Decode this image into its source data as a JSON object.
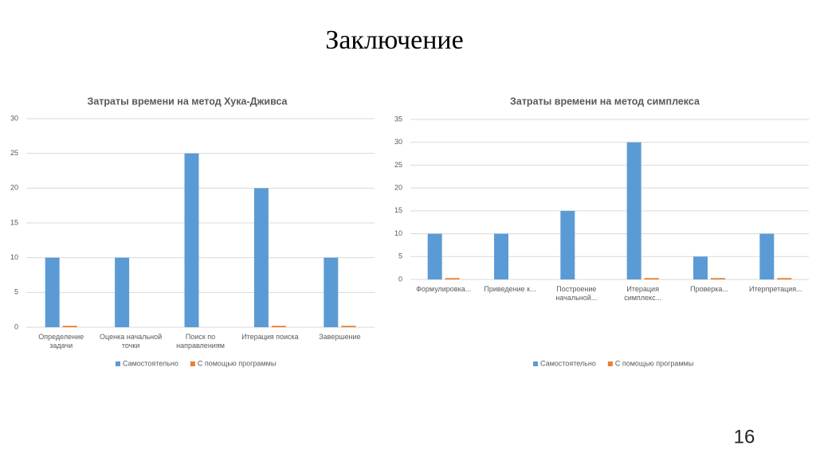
{
  "title": "Заключение",
  "page_number": "16",
  "chart_data": [
    {
      "type": "bar",
      "title": "Затраты времени на метод Хука-Дживса",
      "categories": [
        "Определение задачи",
        "Оценка начальной точки",
        "Поиск по направлениям",
        "Итерация поиска",
        "Завершение"
      ],
      "series": [
        {
          "name": "Самостоятельно",
          "color": "#5b9bd5",
          "values": [
            10,
            10,
            25,
            20,
            10
          ]
        },
        {
          "name": "С помощью программы",
          "color": "#ed7d31",
          "values": [
            0.2,
            0,
            0,
            0.2,
            0.2
          ]
        }
      ],
      "ylim": [
        0,
        30
      ],
      "yticks": [
        0,
        5,
        10,
        15,
        20,
        25,
        30
      ],
      "grid": true,
      "legend": "bottom"
    },
    {
      "type": "bar",
      "title": "Затраты времени на метод симплекса",
      "categories": [
        "Формулировка...",
        "Приведение к...",
        "Построение начальной...",
        "Итерация симплекс...",
        "Проверка...",
        "Итерпретация..."
      ],
      "series": [
        {
          "name": "Самостоятельно",
          "color": "#5b9bd5",
          "values": [
            10,
            10,
            15,
            30,
            5,
            10
          ]
        },
        {
          "name": "С помощью программы",
          "color": "#ed7d31",
          "values": [
            0.3,
            0,
            0,
            0.3,
            0.3,
            0.3
          ]
        }
      ],
      "ylim": [
        0,
        35
      ],
      "yticks": [
        0,
        5,
        10,
        15,
        20,
        25,
        30,
        35
      ],
      "grid": true,
      "legend": "bottom"
    }
  ]
}
